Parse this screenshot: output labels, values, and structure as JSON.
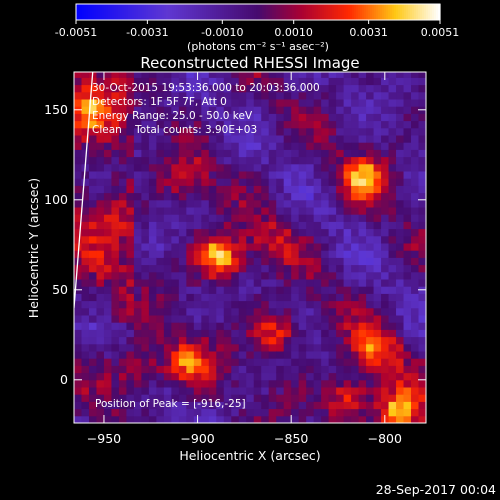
{
  "chart_data": {
    "type": "heatmap",
    "title": "Reconstructed RHESSI Image",
    "xlabel": "Heliocentric X (arcsec)",
    "ylabel": "Heliocentric Y (arcsec)",
    "xlim": [
      -966,
      -778
    ],
    "ylim": [
      -24,
      171
    ],
    "xticks": [
      -950,
      -900,
      -850,
      -800
    ],
    "yticks": [
      0,
      50,
      100,
      150
    ],
    "colorbar": {
      "min": -0.0051,
      "max": 0.0051,
      "ticks": [
        -0.0051,
        -0.0031,
        -0.001,
        0.001,
        0.0031,
        0.0051
      ],
      "tick_labels": [
        "-0.0051",
        "-0.0031",
        "-0.0010",
        "0.0010",
        "0.0031",
        "0.0051"
      ],
      "unit_label": "(photons cm⁻² s⁻¹ asec⁻²)"
    },
    "annotations": [
      "30-Oct-2015 19:53:36.000 to 20:03:36.000",
      "Detectors: 1F 5F 7F, Att 0",
      "Energy Range: 25.0 - 50.0 keV",
      "Clean    Total counts: 3.90E+03"
    ],
    "peak_label": "Position of Peak = [-916,-25]",
    "peak": [
      -916,
      -25
    ],
    "sources": [
      {
        "x": -888,
        "y": 68,
        "value": 0.0049
      },
      {
        "x": -906,
        "y": 10,
        "value": 0.0034
      },
      {
        "x": -932,
        "y": 6,
        "value": 0.0028
      },
      {
        "x": -858,
        "y": 26,
        "value": 0.0033
      },
      {
        "x": -810,
        "y": 112,
        "value": 0.0036
      },
      {
        "x": -805,
        "y": 18,
        "value": 0.0033
      },
      {
        "x": -820,
        "y": -10,
        "value": 0.0036
      },
      {
        "x": -792,
        "y": -18,
        "value": 0.0046
      },
      {
        "x": -958,
        "y": 150,
        "value": 0.003
      },
      {
        "x": -905,
        "y": 112,
        "value": 0.0022
      },
      {
        "x": -860,
        "y": 78,
        "value": 0.0018
      },
      {
        "x": -940,
        "y": 90,
        "value": 0.0012
      }
    ],
    "limb_line": [
      [
        -966,
        40
      ],
      [
        -956,
        171
      ]
    ],
    "timestamp": "28-Sep-2017 00:04"
  }
}
